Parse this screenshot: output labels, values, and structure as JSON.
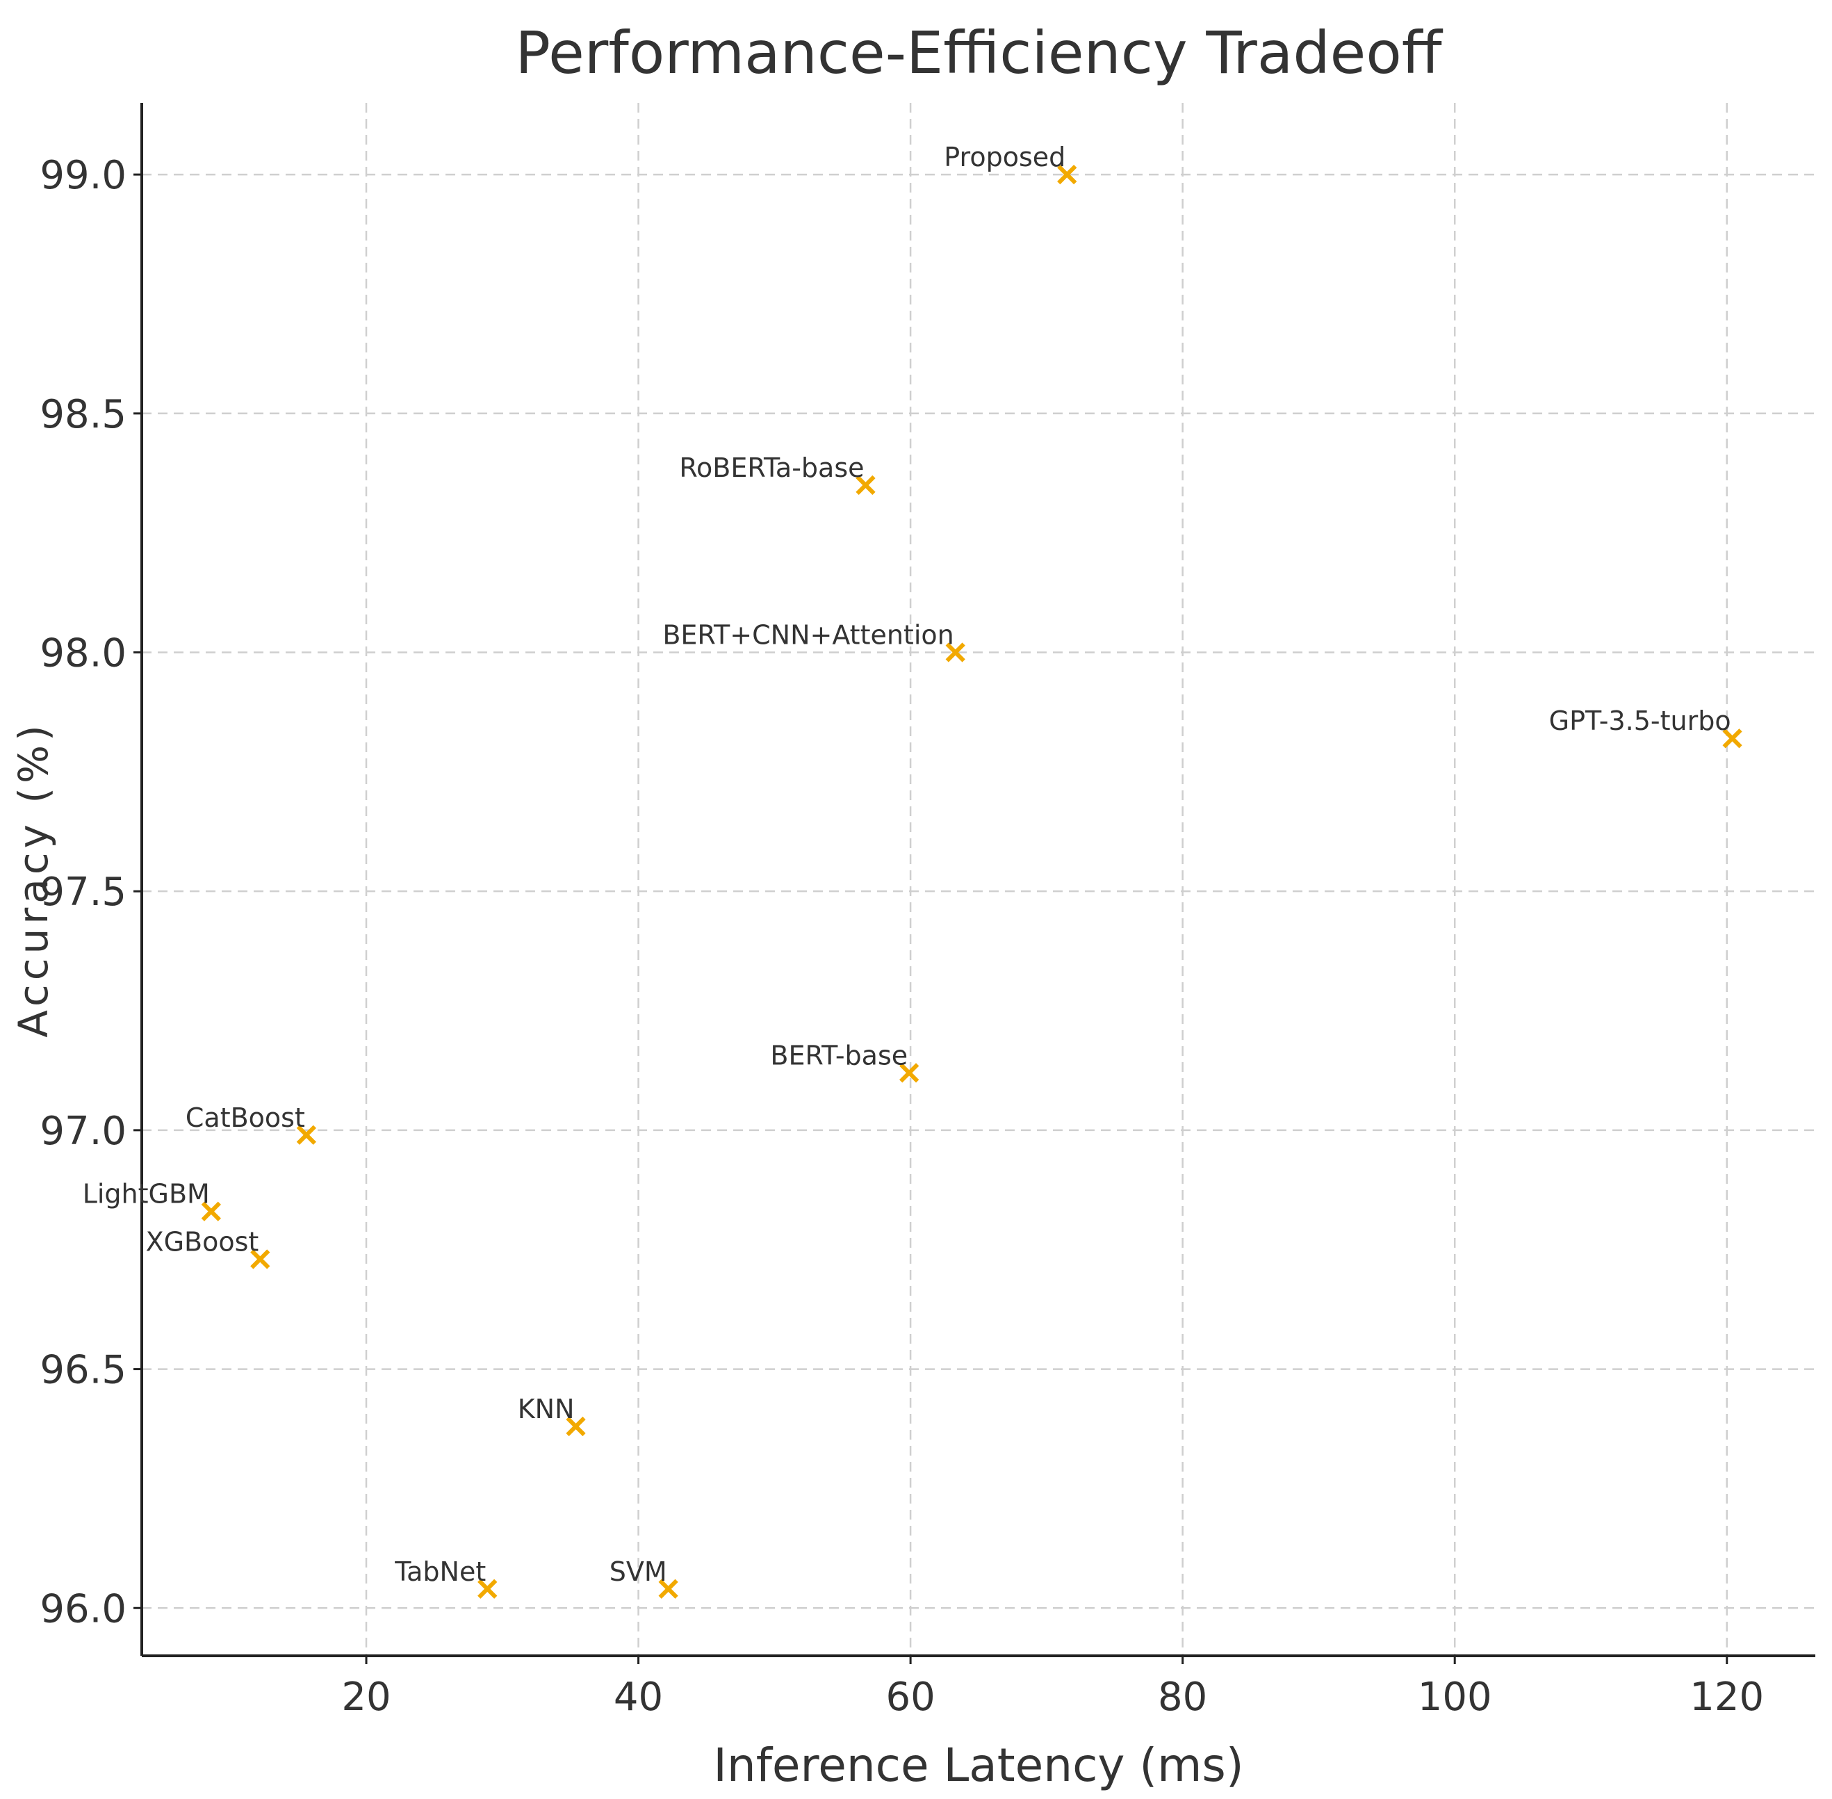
{
  "chart_data": {
    "type": "scatter",
    "title": "Performance-Efficiency Tradeoff",
    "xlabel": "Inference Latency (ms)",
    "ylabel": "Accuracy (%)",
    "xlim": [
      3.5,
      126.5
    ],
    "ylim": [
      95.9,
      99.15
    ],
    "xticks": [
      20,
      40,
      60,
      80,
      100,
      120
    ],
    "yticks": [
      96.0,
      96.5,
      97.0,
      97.5,
      98.0,
      98.5,
      99.0
    ],
    "grid": true,
    "marker": "x",
    "marker_color": "#f2a900",
    "points": [
      {
        "label": "Proposed",
        "x": 71.5,
        "y": 99.0
      },
      {
        "label": "RoBERTa-base",
        "x": 56.7,
        "y": 98.35
      },
      {
        "label": "BERT+CNN+Attention",
        "x": 63.3,
        "y": 98.0
      },
      {
        "label": "GPT-3.5-turbo",
        "x": 120.4,
        "y": 97.82
      },
      {
        "label": "BERT-base",
        "x": 59.9,
        "y": 97.12
      },
      {
        "label": "CatBoost",
        "x": 15.6,
        "y": 96.99
      },
      {
        "label": "LightGBM",
        "x": 8.6,
        "y": 96.83
      },
      {
        "label": "XGBoost",
        "x": 12.2,
        "y": 96.73
      },
      {
        "label": "KNN",
        "x": 35.4,
        "y": 96.38
      },
      {
        "label": "TabNet",
        "x": 28.9,
        "y": 96.04
      },
      {
        "label": "SVM",
        "x": 42.2,
        "y": 96.04
      }
    ]
  }
}
